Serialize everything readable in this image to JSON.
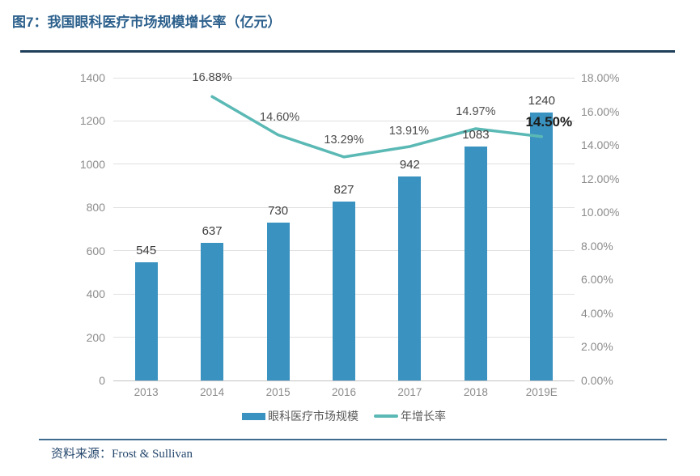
{
  "figure": {
    "title": "图7：我国眼科医疗市场规模增长率（亿元）",
    "source": "资料来源：Frost & Sullivan"
  },
  "legend": {
    "items": [
      {
        "label": "眼科医疗市场规模",
        "swatch": "bar-swatch"
      },
      {
        "label": "年增长率",
        "swatch": "line-swatch"
      }
    ]
  },
  "colors": {
    "bar": "#3A92C0",
    "line": "#5BB9B5",
    "title": "#2C608C",
    "ruleTop": "#1F3E59",
    "ruleBottom": "#3E6B90",
    "axisText": "#8C8C8C",
    "valueText": "#404040",
    "lineLabelText": "#4D4D4D",
    "emphText": "#1C1C1C",
    "legendText": "#595959",
    "sourceText": "#27496E",
    "gridline": "#E0E0E0",
    "baseline": "#C3C3C3"
  },
  "chart_data": {
    "type": "combo-bar-line",
    "title": "我国眼科医疗市场规模增长率（亿元）",
    "categories": [
      "2013",
      "2014",
      "2015",
      "2016",
      "2017",
      "2018",
      "2019E"
    ],
    "series": [
      {
        "name": "眼科医疗市场规模",
        "type": "bar",
        "axis": "left",
        "values": [
          545,
          637,
          730,
          827,
          942,
          1083,
          1240
        ],
        "labels": [
          "545",
          "637",
          "730",
          "827",
          "942",
          "1083",
          "1240"
        ]
      },
      {
        "name": "年增长率",
        "type": "line",
        "axis": "right",
        "values": [
          null,
          16.88,
          14.6,
          13.29,
          13.91,
          14.97,
          14.5
        ],
        "labels": [
          null,
          "16.88%",
          "14.60%",
          "13.29%",
          "13.91%",
          "14.97%",
          "14.50%"
        ]
      }
    ],
    "axis_left": {
      "min": 0,
      "max": 1400,
      "step": 200
    },
    "axis_right": {
      "min": 0,
      "max": 18,
      "step": 2,
      "suffix": "%",
      "decimals": 2
    },
    "grid": true,
    "legend_position": "bottom"
  }
}
